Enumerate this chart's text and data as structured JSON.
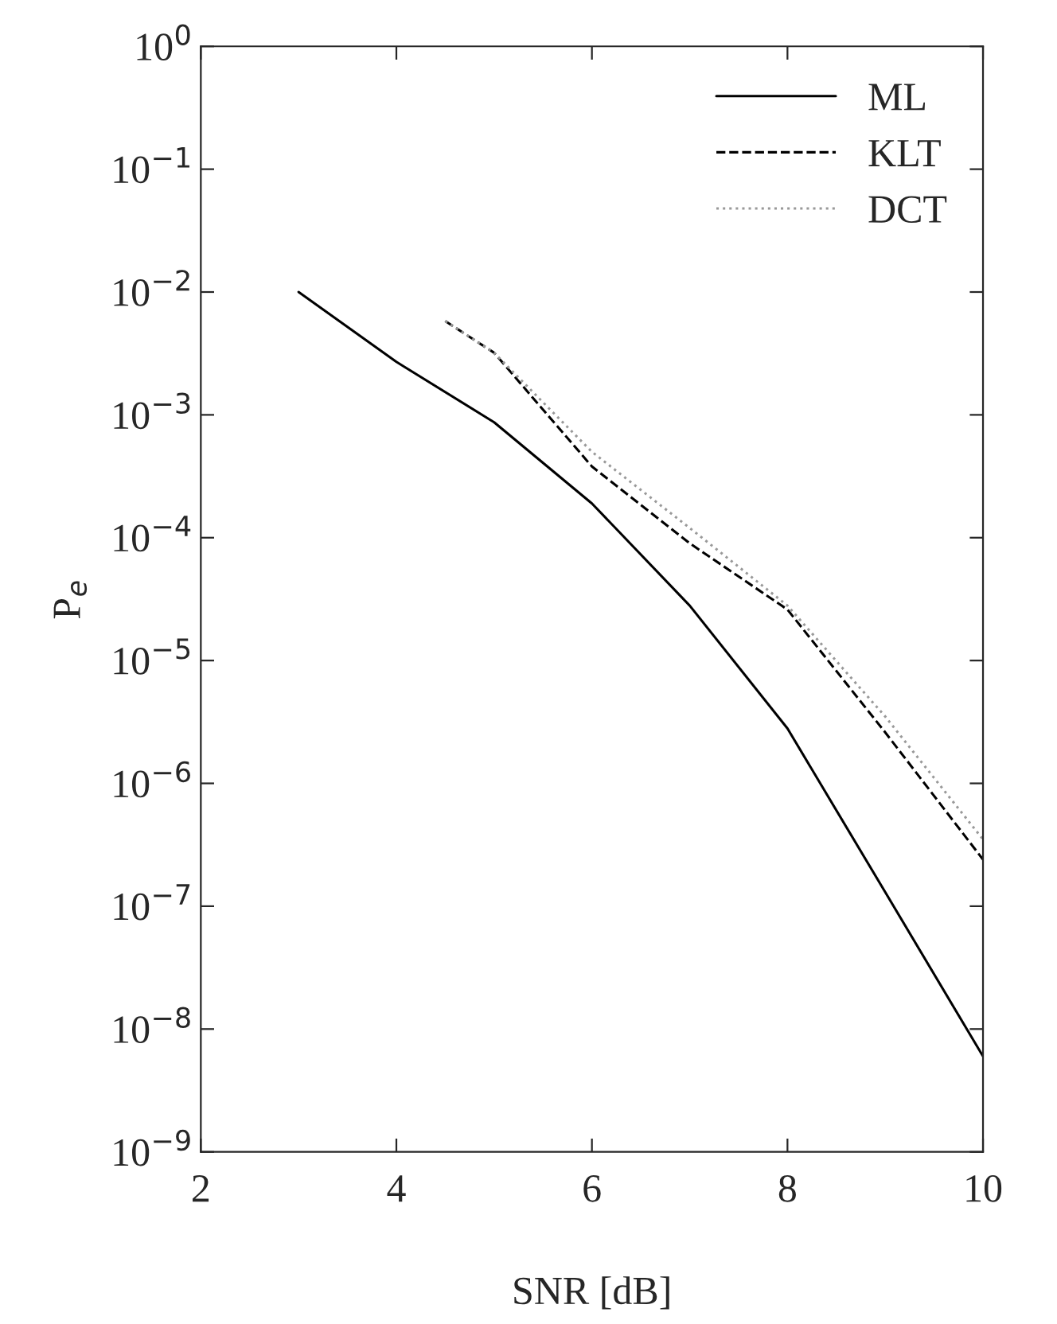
{
  "chart_data": {
    "type": "line",
    "xlabel": "SNR [dB]",
    "ylabel": "P$_{e}$",
    "log": "y",
    "grid": false,
    "legend": "top right",
    "xlim": [
      2,
      10
    ],
    "xticks": [
      2,
      4,
      6,
      8,
      10
    ],
    "ylim": [
      1e-09,
      1
    ],
    "yticks": [
      {
        "value": 1e-09,
        "label": "10$^{−9}$"
      },
      {
        "value": 1e-08,
        "label": "10$^{−8}$"
      },
      {
        "value": 1e-07,
        "label": "10$^{−7}$"
      },
      {
        "value": 1e-06,
        "label": "10$^{−6}$"
      },
      {
        "value": 1e-05,
        "label": "10$^{−5}$"
      },
      {
        "value": 0.0001,
        "label": "10$^{−4}$"
      },
      {
        "value": 0.001,
        "label": "10$^{−3}$"
      },
      {
        "value": 0.01,
        "label": "10$^{−2}$"
      },
      {
        "value": 0.1,
        "label": "10$^{−1}$"
      },
      {
        "value": 1,
        "label": "10$^{0}$"
      }
    ],
    "series": [
      {
        "name": "ML",
        "color": "#000000",
        "line_style": "solid",
        "x": [
          3,
          4,
          5,
          6,
          7,
          8,
          9,
          10
        ],
        "values": [
          0.01,
          0.0027,
          0.00087,
          0.00019,
          2.8e-05,
          2.8e-06,
          1.3e-07,
          6e-09
        ]
      },
      {
        "name": "KLT",
        "color": "#000000",
        "line_style": "dashed",
        "x": [
          4.5,
          5,
          6,
          7,
          8,
          9,
          10
        ],
        "values": [
          0.0058,
          0.0032,
          0.00038,
          9e-05,
          2.6e-05,
          2.6e-06,
          2.4e-07
        ]
      },
      {
        "name": "DCT",
        "color": "#999999",
        "line_style": "dotted",
        "x": [
          4.5,
          5,
          6,
          7,
          8,
          9,
          10
        ],
        "values": [
          0.0058,
          0.0032,
          0.0005,
          0.00012,
          2.8e-05,
          3.5e-06,
          3.5e-07
        ]
      }
    ]
  }
}
